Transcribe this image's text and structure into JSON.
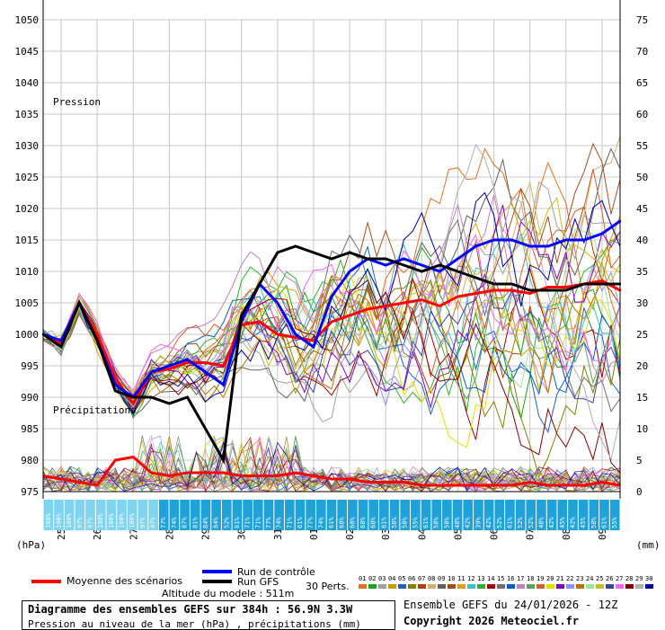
{
  "chart_data": {
    "type": "line",
    "left_axis": {
      "label": "(hPa)",
      "min": 975,
      "max": 1050,
      "ticks": [
        975,
        980,
        985,
        990,
        995,
        1000,
        1005,
        1010,
        1015,
        1020,
        1025,
        1030,
        1035,
        1040,
        1045,
        1050
      ]
    },
    "right_axis": {
      "label": "(mm)",
      "min": 0,
      "max": 75,
      "ticks": [
        0,
        5,
        10,
        15,
        20,
        25,
        30,
        35,
        40,
        45,
        50,
        55,
        60,
        65,
        70,
        75
      ]
    },
    "x_labels": [
      "25/01",
      "26/01",
      "27/01",
      "28/01",
      "29/01",
      "30/01",
      "31/01",
      "01/02",
      "02/02",
      "03/02",
      "04/02",
      "05/02",
      "06/02",
      "07/02",
      "08/02",
      "09/02"
    ],
    "x_range_hours": [
      0,
      384
    ],
    "annotations": {
      "pression": "Pression",
      "precipitations": "Précipitations"
    },
    "precip_probability": [
      "100%",
      "100%",
      "100%",
      "97%",
      "97%",
      "100%",
      "100%",
      "100%",
      "100%",
      "97%",
      "97%",
      "77%",
      "74%",
      "87%",
      "81%",
      "84%",
      "84%",
      "52%",
      "61%",
      "71%",
      "71%",
      "77%",
      "74%",
      "71%",
      "61%",
      "77%",
      "74%",
      "61%",
      "68%",
      "68%",
      "68%",
      "68%",
      "61%",
      "58%",
      "58%",
      "55%",
      "61%",
      "58%",
      "58%",
      "48%",
      "42%",
      "39%",
      "42%",
      "52%",
      "61%",
      "52%",
      "52%",
      "48%",
      "42%",
      "45%",
      "42%",
      "45%",
      "58%",
      "61%",
      "55%"
    ],
    "series": [
      {
        "name": "Moyenne des scénarios",
        "color": "#ff0000",
        "x": [
          0,
          12,
          24,
          36,
          48,
          60,
          72,
          84,
          96,
          108,
          120,
          132,
          144,
          156,
          168,
          180,
          192,
          204,
          216,
          228,
          240,
          252,
          264,
          276,
          288,
          300,
          312,
          324,
          336,
          348,
          360,
          372,
          384
        ],
        "y": [
          1000,
          998.5,
          1005,
          1000,
          993,
          989,
          994,
          994.5,
          995.5,
          995.5,
          995,
          1001.5,
          1002,
          1000,
          999.5,
          999,
          1002,
          1003,
          1004,
          1004.5,
          1005,
          1005.5,
          1004.5,
          1006,
          1006.5,
          1007,
          1007,
          1006.5,
          1007.5,
          1007.5,
          1008,
          1008.5,
          1007
        ]
      },
      {
        "name": "Run de contrôle",
        "color": "#0000ff",
        "x": [
          0,
          12,
          24,
          36,
          48,
          60,
          72,
          84,
          96,
          108,
          120,
          132,
          144,
          156,
          168,
          180,
          192,
          204,
          216,
          228,
          240,
          252,
          264,
          276,
          288,
          300,
          312,
          324,
          336,
          348,
          360,
          372,
          384
        ],
        "y": [
          1000,
          999,
          1005,
          999,
          992,
          990,
          994,
          995,
          996,
          994,
          992,
          1002,
          1008,
          1005,
          1000,
          998,
          1006,
          1010,
          1012,
          1011,
          1012,
          1011,
          1010,
          1012,
          1014,
          1015,
          1015,
          1014,
          1014,
          1015,
          1015,
          1016,
          1018
        ]
      },
      {
        "name": "Run GFS",
        "color": "#000000",
        "x": [
          0,
          12,
          24,
          36,
          48,
          60,
          72,
          84,
          96,
          108,
          120,
          132,
          144,
          156,
          168,
          180,
          192,
          204,
          216,
          228,
          240,
          252,
          264,
          276,
          288,
          300,
          312,
          324,
          336,
          348,
          360,
          372,
          384
        ],
        "y": [
          1000,
          998,
          1005,
          999,
          991,
          990,
          990,
          989,
          990,
          985,
          980,
          1003,
          1008,
          1013,
          1014,
          1013,
          1012,
          1013,
          1012,
          1012,
          1011,
          1010,
          1011,
          1010,
          1009,
          1008,
          1008,
          1007,
          1007,
          1007,
          1008,
          1008,
          1008
        ]
      }
    ],
    "precipitation_series": [
      {
        "name": "Moyenne des scénarios",
        "color": "#ff0000",
        "x": [
          0,
          12,
          24,
          36,
          48,
          60,
          72,
          84,
          96,
          108,
          120,
          132,
          144,
          156,
          168,
          180,
          192,
          204,
          216,
          228,
          240,
          252,
          264,
          276,
          288,
          300,
          312,
          324,
          336,
          348,
          360,
          372,
          384
        ],
        "y": [
          2.5,
          2,
          1.5,
          1,
          5,
          5.5,
          3,
          2.5,
          3,
          3,
          3,
          2.5,
          2.5,
          2.5,
          3,
          2.5,
          2,
          2,
          1.5,
          1.5,
          1.5,
          1,
          1,
          1,
          1,
          1,
          1,
          1.5,
          1,
          1,
          1,
          1.5,
          1
        ]
      }
    ],
    "legend": [
      {
        "label": "Moyenne des scénarios",
        "color": "#ff0000"
      },
      {
        "label": "Run de contrôle",
        "color": "#0000ff"
      },
      {
        "label": "Run GFS",
        "color": "#000000"
      },
      {
        "label": "30 Perts.",
        "color": ""
      }
    ],
    "perturbations": [
      "01",
      "02",
      "03",
      "04",
      "05",
      "06",
      "07",
      "08",
      "09",
      "10",
      "11",
      "12",
      "13",
      "14",
      "15",
      "16",
      "17",
      "18",
      "19",
      "20",
      "21",
      "22",
      "23",
      "24",
      "25",
      "26",
      "27",
      "28",
      "29",
      "30"
    ],
    "perturbation_colors": [
      "#e07020",
      "#20a020",
      "#a0a0a0",
      "#c0a000",
      "#2060c0",
      "#808000",
      "#b04000",
      "#d0b070",
      "#606060",
      "#a05020",
      "#e0a000",
      "#40c0c0",
      "#30b030",
      "#a00000",
      "#707070",
      "#0060c0",
      "#c080c0",
      "#60a060",
      "#d06030",
      "#e0e000",
      "#8000c0",
      "#9090ff",
      "#c07000",
      "#a0e0a0",
      "#c0c020",
      "#4040a0",
      "#ff60ff",
      "#800000",
      "#b0b0b0",
      "#0000a0"
    ],
    "grid": true
  },
  "footer": {
    "altitude": "Altitude du modele : 511m",
    "title": "Diagramme des ensembles GEFS sur 384h : 56.9N 3.3W",
    "subtitle": "Pression au niveau de la mer (hPa) , précipitations (mm)",
    "ensemble": "Ensemble GEFS du 24/01/2026 - 12Z",
    "copyright": "Copyright 2026 Meteociel.fr"
  }
}
